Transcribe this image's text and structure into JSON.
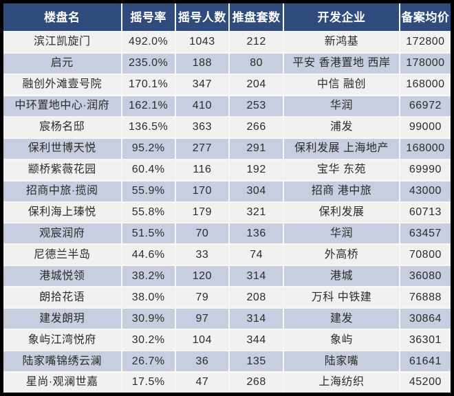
{
  "colors": {
    "frame": "#000000",
    "separator": "#f7f7f7",
    "header_bg": "#2f4b7c",
    "header_text": "#ffffff",
    "row_odd_bg": "#f1f1ef",
    "row_even_bg": "#c6cedf",
    "text": "#2b2b2b"
  },
  "chart_data": {
    "type": "table",
    "title": "",
    "columns": [
      "楼盘名",
      "摇号率",
      "摇号人数",
      "推盘套数",
      "开发企业",
      "备案均价"
    ],
    "rows": [
      {
        "name": "滨江凯旋门",
        "rate": "492.0%",
        "people": "1043",
        "units": "212",
        "developer": "新鸿基",
        "price": "172800"
      },
      {
        "name": "启元",
        "rate": "235.0%",
        "people": "188",
        "units": "80",
        "developer": "平安 香港置地 西岸",
        "price": "178000"
      },
      {
        "name": "融创外滩壹号院",
        "rate": "170.1%",
        "people": "347",
        "units": "204",
        "developer": "中信 融创",
        "price": "168000"
      },
      {
        "name": "中环置地中心·润府",
        "rate": "162.1%",
        "people": "410",
        "units": "253",
        "developer": "华润",
        "price": "66972"
      },
      {
        "name": "宸杨名邸",
        "rate": "136.5%",
        "people": "363",
        "units": "266",
        "developer": "浦发",
        "price": "99000"
      },
      {
        "name": "保利世博天悦",
        "rate": "95.2%",
        "people": "277",
        "units": "291",
        "developer": "保利发展 上海地产",
        "price": "168000"
      },
      {
        "name": "颛桥紫薇花园",
        "rate": "60.4%",
        "people": "116",
        "units": "192",
        "developer": "宝华 东苑",
        "price": "69990"
      },
      {
        "name": "招商中旅·揽阅",
        "rate": "55.9%",
        "people": "170",
        "units": "304",
        "developer": "招商 港中旅",
        "price": "43000"
      },
      {
        "name": "保利海上瑧悦",
        "rate": "55.8%",
        "people": "179",
        "units": "321",
        "developer": "保利发展",
        "price": "60713"
      },
      {
        "name": "观宸润府",
        "rate": "51.5%",
        "people": "70",
        "units": "136",
        "developer": "华润",
        "price": "63457"
      },
      {
        "name": "尼德兰半岛",
        "rate": "44.6%",
        "people": "33",
        "units": "74",
        "developer": "外高桥",
        "price": "70800"
      },
      {
        "name": "港城悦领",
        "rate": "38.2%",
        "people": "120",
        "units": "314",
        "developer": "港城",
        "price": "36080"
      },
      {
        "name": "朗拾花语",
        "rate": "38.0%",
        "people": "79",
        "units": "208",
        "developer": "万科 中铁建",
        "price": "76888"
      },
      {
        "name": "建发朗玥",
        "rate": "30.9%",
        "people": "97",
        "units": "314",
        "developer": "建发",
        "price": "30864"
      },
      {
        "name": "象屿江湾悦府",
        "rate": "30.2%",
        "people": "104",
        "units": "344",
        "developer": "象屿",
        "price": "36301"
      },
      {
        "name": "陆家嘴锦绣云澜",
        "rate": "26.7%",
        "people": "36",
        "units": "135",
        "developer": "陆家嘴",
        "price": "61641"
      },
      {
        "name": "星尚·观澜世嘉",
        "rate": "17.5%",
        "people": "47",
        "units": "268",
        "developer": "上海纺织",
        "price": "45200"
      }
    ]
  }
}
